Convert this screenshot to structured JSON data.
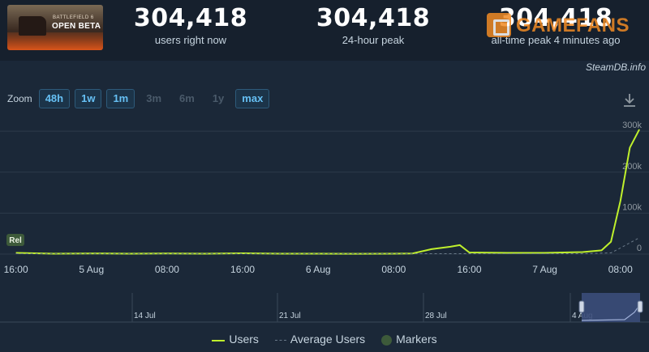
{
  "header": {
    "thumbnail": {
      "subtitle": "BATTLEFIELD 6",
      "title": "OPEN BETA"
    },
    "stats": [
      {
        "value": "304,418",
        "label": "users right now"
      },
      {
        "value": "304,418",
        "label": "24-hour peak"
      },
      {
        "value": "304,418",
        "label": "all-time peak 4 minutes ago"
      }
    ],
    "watermark": "GAMEFANS",
    "source": "SteamDB.info"
  },
  "zoom": {
    "label": "Zoom",
    "buttons": [
      {
        "label": "48h",
        "state": "active"
      },
      {
        "label": "1w",
        "state": "active"
      },
      {
        "label": "1m",
        "state": "active"
      },
      {
        "label": "3m",
        "state": "disabled"
      },
      {
        "label": "6m",
        "state": "disabled"
      },
      {
        "label": "1y",
        "state": "disabled"
      },
      {
        "label": "max",
        "state": "active"
      }
    ],
    "download_icon": "download-icon"
  },
  "chart_data": {
    "type": "line",
    "title": "",
    "ylim": [
      0,
      320000
    ],
    "y_ticks": [
      "0",
      "100k",
      "200k",
      "300k"
    ],
    "x_ticks": [
      "16:00",
      "5 Aug",
      "08:00",
      "16:00",
      "6 Aug",
      "08:00",
      "16:00",
      "7 Aug",
      "08:00"
    ],
    "marker": {
      "label": "Rel",
      "x_label": "16:00"
    },
    "series": [
      {
        "name": "Users",
        "color": "#bff02c",
        "x": [
          "Aug 4 16:00",
          "Aug 4 20:00",
          "Aug 5 00:00",
          "Aug 5 04:00",
          "Aug 5 08:00",
          "Aug 5 12:00",
          "Aug 5 16:00",
          "Aug 5 20:00",
          "Aug 6 00:00",
          "Aug 6 04:00",
          "Aug 6 08:00",
          "Aug 6 10:00",
          "Aug 6 12:00",
          "Aug 6 14:00",
          "Aug 6 15:00",
          "Aug 6 16:00",
          "Aug 6 20:00",
          "Aug 7 00:00",
          "Aug 7 04:00",
          "Aug 7 06:00",
          "Aug 7 07:00",
          "Aug 7 08:00",
          "Aug 7 09:00",
          "Aug 7 10:00"
        ],
        "values": [
          3000,
          1000,
          1500,
          1000,
          1500,
          1000,
          2000,
          1000,
          1000,
          800,
          1000,
          1500,
          12000,
          18000,
          22000,
          4000,
          3000,
          3000,
          5000,
          9000,
          30000,
          130000,
          260000,
          304418
        ]
      },
      {
        "name": "Average Users",
        "color": "#6a7a89",
        "x": [
          "Aug 4 16:00",
          "Aug 6 12:00",
          "Aug 7 04:00",
          "Aug 7 07:00",
          "Aug 7 08:00",
          "Aug 7 10:00"
        ],
        "values": [
          1000,
          1000,
          1000,
          3000,
          15000,
          40000
        ]
      }
    ]
  },
  "navigator": {
    "labels": [
      "14 Jul",
      "21 Jul",
      "28 Jul",
      "4 Aug"
    ]
  },
  "legend": {
    "items": [
      {
        "label": "Users",
        "swatch": "line",
        "color": "#bff02c"
      },
      {
        "label": "Average Users",
        "swatch": "dash",
        "color": "#6a7a89"
      },
      {
        "label": "Markers",
        "swatch": "dot",
        "color": "#3d5a3a"
      }
    ]
  }
}
